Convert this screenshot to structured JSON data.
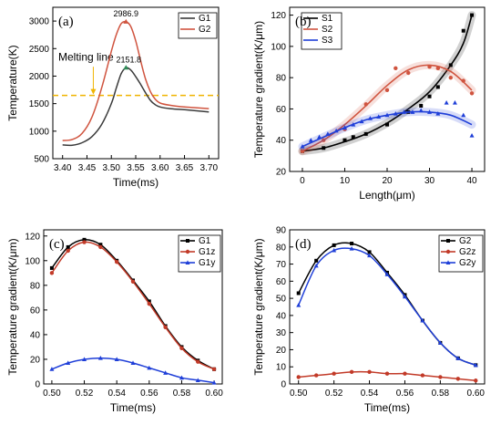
{
  "chart_data": [
    {
      "type": "line",
      "panel_label": "(a)",
      "xlabel": "Time(ms)",
      "ylabel": "Temperature(K)",
      "xlim": [
        3.38,
        3.72
      ],
      "ylim": [
        500,
        3250
      ],
      "xticks": [
        3.4,
        3.45,
        3.5,
        3.55,
        3.6,
        3.65,
        3.7
      ],
      "yticks": [
        500,
        1000,
        1500,
        2000,
        2500,
        3000
      ],
      "xtick_labels": [
        "3.40",
        "3.45",
        "3.50",
        "3.55",
        "3.60",
        "3.65",
        "3.70"
      ],
      "ytick_labels": [
        "500",
        "1000",
        "1500",
        "2000",
        "2500",
        "3000"
      ],
      "legend_position": "top-right",
      "series": [
        {
          "name": "G1",
          "color": "#3a3a3a",
          "x": [
            3.4,
            3.42,
            3.44,
            3.46,
            3.48,
            3.5,
            3.51,
            3.52,
            3.53,
            3.54,
            3.55,
            3.56,
            3.57,
            3.58,
            3.59,
            3.6,
            3.62,
            3.65,
            3.7
          ],
          "y": [
            750,
            745,
            790,
            900,
            1120,
            1500,
            1780,
            2040,
            2152,
            2110,
            1990,
            1850,
            1700,
            1560,
            1480,
            1440,
            1410,
            1390,
            1350
          ]
        },
        {
          "name": "G2",
          "color": "#d0543f",
          "x": [
            3.4,
            3.42,
            3.44,
            3.46,
            3.48,
            3.5,
            3.51,
            3.52,
            3.53,
            3.54,
            3.55,
            3.56,
            3.57,
            3.58,
            3.59,
            3.6,
            3.62,
            3.65,
            3.7
          ],
          "y": [
            830,
            850,
            960,
            1250,
            1780,
            2450,
            2750,
            2950,
            2987,
            2900,
            2640,
            2280,
            1950,
            1720,
            1580,
            1510,
            1470,
            1440,
            1410
          ]
        }
      ],
      "melting_line": {
        "value": 1650,
        "label": "Melting line",
        "color": "#f0b400"
      },
      "peak_annotations": [
        {
          "x": 3.53,
          "y": 2986.9,
          "label": "2986.9"
        },
        {
          "x": 3.53,
          "y": 2151.8,
          "label": "2151.8"
        }
      ]
    },
    {
      "type": "scatter",
      "panel_label": "(b)",
      "xlabel": "Length(μm)",
      "ylabel": "Temperature gradient(K/μm)",
      "xlim": [
        -3,
        43
      ],
      "ylim": [
        20,
        125
      ],
      "xticks": [
        0,
        10,
        20,
        30,
        40
      ],
      "yticks": [
        20,
        40,
        60,
        80,
        100,
        120
      ],
      "xtick_labels": [
        "0",
        "10",
        "20",
        "30",
        "40"
      ],
      "ytick_labels": [
        "20",
        "40",
        "60",
        "80",
        "100",
        "120"
      ],
      "legend_position": "top-left",
      "series": [
        {
          "name": "S1",
          "color": "#000000",
          "marker": "square",
          "x": [
            0,
            5,
            10,
            12,
            15,
            20,
            25,
            28,
            30,
            32,
            35,
            38,
            40
          ],
          "y": [
            33,
            35,
            40,
            42,
            44,
            50,
            58,
            62,
            68,
            74,
            88,
            110,
            120
          ],
          "fit": [
            [
              0,
              33
            ],
            [
              5,
              35
            ],
            [
              10,
              39
            ],
            [
              15,
              44
            ],
            [
              20,
              51
            ],
            [
              25,
              60
            ],
            [
              30,
              71
            ],
            [
              35,
              88
            ],
            [
              38,
              102
            ],
            [
              40,
              120
            ]
          ]
        },
        {
          "name": "S2",
          "color": "#d0543f",
          "marker": "circle",
          "x": [
            0,
            5,
            10,
            15,
            20,
            22,
            25,
            30,
            32,
            35,
            38,
            40
          ],
          "y": [
            33,
            40,
            47,
            63,
            72,
            86,
            83,
            87,
            86,
            80,
            78,
            70
          ],
          "fit": [
            [
              0,
              33
            ],
            [
              5,
              40
            ],
            [
              10,
              50
            ],
            [
              15,
              62
            ],
            [
              20,
              75
            ],
            [
              25,
              85
            ],
            [
              30,
              88
            ],
            [
              35,
              84
            ],
            [
              40,
              72
            ]
          ]
        },
        {
          "name": "S3",
          "color": "#1f3fd8",
          "marker": "triangle",
          "x": [
            0,
            2,
            4,
            6,
            8,
            10,
            12,
            14,
            16,
            18,
            20,
            22,
            24,
            26,
            28,
            30,
            32,
            34,
            36,
            38,
            40
          ],
          "y": [
            36,
            40,
            42,
            44,
            46,
            48,
            50,
            52,
            54,
            55,
            56,
            57,
            58,
            58,
            59,
            58,
            57,
            64,
            64,
            56,
            43
          ],
          "fit": [
            [
              0,
              36
            ],
            [
              5,
              42
            ],
            [
              10,
              48
            ],
            [
              15,
              53
            ],
            [
              20,
              56
            ],
            [
              25,
              58
            ],
            [
              30,
              58
            ],
            [
              35,
              56
            ],
            [
              40,
              50
            ]
          ]
        }
      ]
    },
    {
      "type": "line",
      "panel_label": "(c)",
      "xlabel": "Time(ms)",
      "ylabel": "Temperature gradient(K/μm)",
      "xlim": [
        0.495,
        0.605
      ],
      "ylim": [
        0,
        125
      ],
      "xticks": [
        0.5,
        0.52,
        0.54,
        0.56,
        0.58,
        0.6
      ],
      "yticks": [
        0,
        20,
        40,
        60,
        80,
        100,
        120
      ],
      "xtick_labels": [
        "0.50",
        "0.52",
        "0.54",
        "0.56",
        "0.58",
        "0.60"
      ],
      "ytick_labels": [
        "0",
        "20",
        "40",
        "60",
        "80",
        "100",
        "120"
      ],
      "legend_position": "top-right",
      "series": [
        {
          "name": "G1",
          "color": "#000000",
          "marker": "square",
          "x": [
            0.5,
            0.51,
            0.52,
            0.53,
            0.54,
            0.55,
            0.56,
            0.57,
            0.58,
            0.59,
            0.6
          ],
          "y": [
            94,
            111,
            117,
            113,
            100,
            84,
            67,
            47,
            30,
            19,
            12
          ]
        },
        {
          "name": "G1z",
          "color": "#c23a28",
          "marker": "circle",
          "x": [
            0.5,
            0.51,
            0.52,
            0.53,
            0.54,
            0.55,
            0.56,
            0.57,
            0.58,
            0.59,
            0.6
          ],
          "y": [
            90,
            108,
            115,
            111,
            99,
            83,
            65,
            46,
            29,
            18,
            12
          ]
        },
        {
          "name": "G1y",
          "color": "#1f3fd8",
          "marker": "triangle",
          "x": [
            0.5,
            0.51,
            0.52,
            0.53,
            0.54,
            0.55,
            0.56,
            0.57,
            0.58,
            0.59,
            0.6
          ],
          "y": [
            12,
            17,
            20,
            21,
            20,
            17,
            13,
            9,
            5,
            3,
            1
          ]
        }
      ]
    },
    {
      "type": "line",
      "panel_label": "(d)",
      "xlabel": "Time(ms)",
      "ylabel": "Temperature gradient(K/μm)",
      "xlim": [
        0.495,
        0.605
      ],
      "ylim": [
        0,
        90
      ],
      "xticks": [
        0.5,
        0.52,
        0.54,
        0.56,
        0.58,
        0.6
      ],
      "yticks": [
        0,
        10,
        20,
        30,
        40,
        50,
        60,
        70,
        80,
        90
      ],
      "xtick_labels": [
        "0.50",
        "0.52",
        "0.54",
        "0.56",
        "0.58",
        "0.60"
      ],
      "ytick_labels": [
        "0",
        "10",
        "20",
        "30",
        "40",
        "50",
        "60",
        "70",
        "80",
        "90"
      ],
      "legend_position": "top-right",
      "series": [
        {
          "name": "G2",
          "color": "#000000",
          "marker": "square",
          "x": [
            0.5,
            0.51,
            0.52,
            0.53,
            0.54,
            0.55,
            0.56,
            0.57,
            0.58,
            0.59,
            0.6
          ],
          "y": [
            53,
            72,
            81,
            82,
            77,
            65,
            52,
            37,
            24,
            15,
            11
          ]
        },
        {
          "name": "G2z",
          "color": "#c23a28",
          "marker": "circle",
          "x": [
            0.5,
            0.51,
            0.52,
            0.53,
            0.54,
            0.55,
            0.56,
            0.57,
            0.58,
            0.59,
            0.6
          ],
          "y": [
            4,
            5,
            6,
            7,
            7,
            6,
            6,
            5,
            4,
            3,
            2
          ]
        },
        {
          "name": "G2y",
          "color": "#1f3fd8",
          "marker": "triangle",
          "x": [
            0.5,
            0.51,
            0.52,
            0.53,
            0.54,
            0.55,
            0.56,
            0.57,
            0.58,
            0.59,
            0.6
          ],
          "y": [
            46,
            69,
            78,
            79,
            75,
            64,
            51,
            37,
            24,
            15,
            11
          ]
        }
      ]
    }
  ]
}
